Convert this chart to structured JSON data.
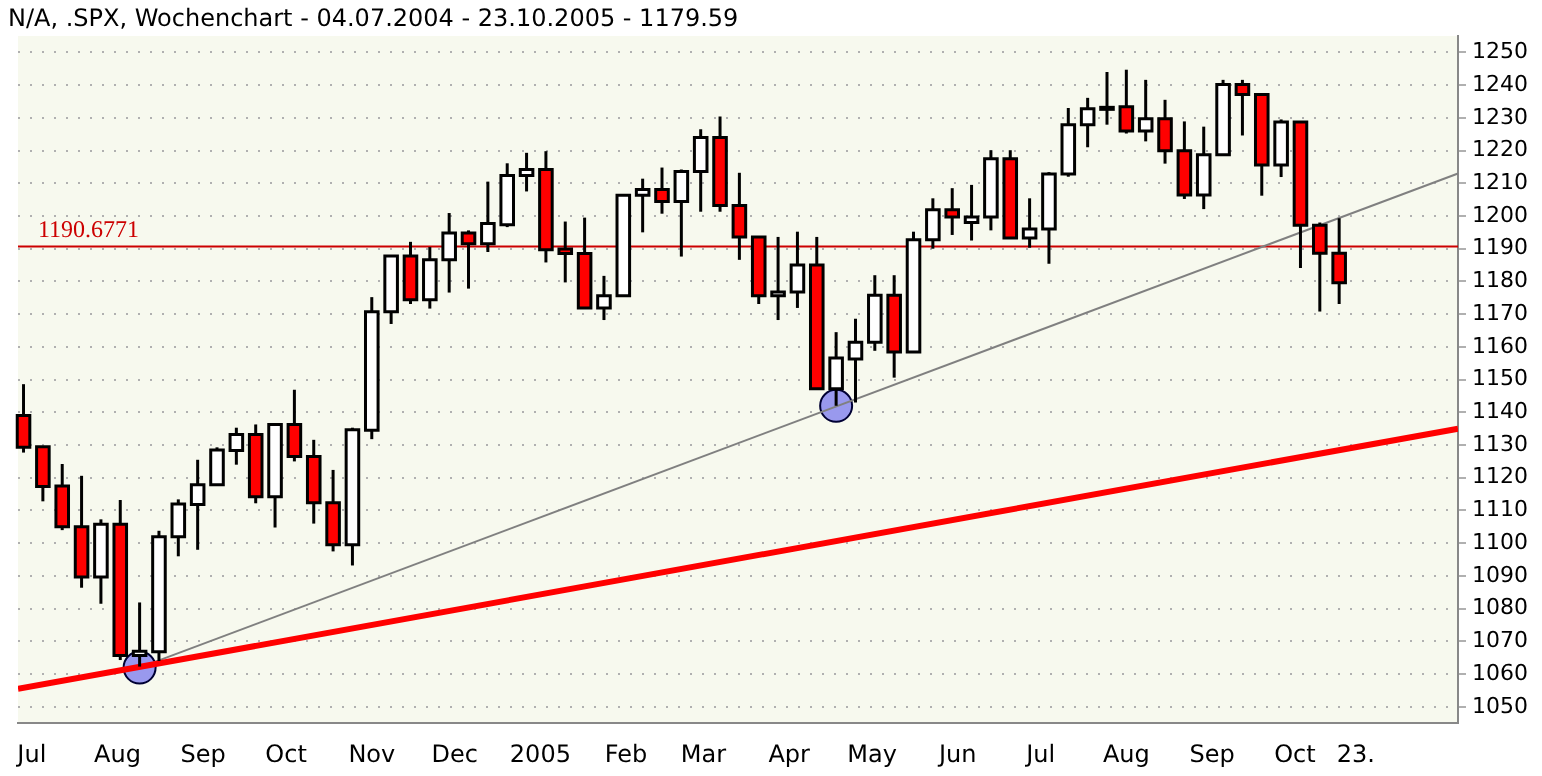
{
  "chart_data": {
    "type": "candlestick",
    "title": "N/A, .SPX, Wochenchart - 04.07.2004 - 23.10.2005 - 1179.59",
    "x": [
      "2004-06-28",
      "2004-07-05",
      "2004-07-12",
      "2004-07-19",
      "2004-07-26",
      "2004-08-02",
      "2004-08-09",
      "2004-08-16",
      "2004-08-23",
      "2004-08-30",
      "2004-09-06",
      "2004-09-13",
      "2004-09-20",
      "2004-09-27",
      "2004-10-04",
      "2004-10-11",
      "2004-10-18",
      "2004-10-25",
      "2004-11-01",
      "2004-11-08",
      "2004-11-15",
      "2004-11-22",
      "2004-11-29",
      "2004-12-06",
      "2004-12-13",
      "2004-12-20",
      "2004-12-27",
      "2005-01-03",
      "2005-01-10",
      "2005-01-17",
      "2005-01-24",
      "2005-01-31",
      "2005-02-07",
      "2005-02-14",
      "2005-02-21",
      "2005-02-28",
      "2005-03-07",
      "2005-03-14",
      "2005-03-21",
      "2005-03-28",
      "2005-04-04",
      "2005-04-11",
      "2005-04-18",
      "2005-04-25",
      "2005-05-02",
      "2005-05-09",
      "2005-05-16",
      "2005-05-23",
      "2005-05-30",
      "2005-06-06",
      "2005-06-13",
      "2005-06-20",
      "2005-06-27",
      "2005-07-04",
      "2005-07-11",
      "2005-07-18",
      "2005-07-25",
      "2005-08-01",
      "2005-08-08",
      "2005-08-15",
      "2005-08-22",
      "2005-08-29",
      "2005-09-05",
      "2005-09-12",
      "2005-09-19",
      "2005-09-26",
      "2005-10-03",
      "2005-10-10",
      "2005-10-17"
    ],
    "ohlc": [
      [
        1139,
        1148.6,
        1127.7,
        1129.3
      ],
      [
        1129.5,
        1129.5,
        1112.8,
        1117.3
      ],
      [
        1117.5,
        1124.2,
        1104,
        1105
      ],
      [
        1105,
        1120.6,
        1086.4,
        1089.7
      ],
      [
        1089.7,
        1107.3,
        1081.5,
        1105.8
      ],
      [
        1105.8,
        1113.2,
        1064.3,
        1065.7
      ],
      [
        1065.7,
        1081.9,
        1062.3,
        1067
      ],
      [
        1066.8,
        1103.8,
        1064,
        1102
      ],
      [
        1102,
        1113.4,
        1096,
        1112
      ],
      [
        1111.8,
        1125.5,
        1098,
        1117.9
      ],
      [
        1117.9,
        1129.3,
        1117.5,
        1128.5
      ],
      [
        1128.3,
        1135.3,
        1124,
        1133.2
      ],
      [
        1133.2,
        1136.3,
        1112.2,
        1114.2
      ],
      [
        1114.2,
        1136.3,
        1104.8,
        1136.3
      ],
      [
        1136.3,
        1146.9,
        1125,
        1126.5
      ],
      [
        1126.5,
        1131.6,
        1106,
        1112.4
      ],
      [
        1112.4,
        1122.4,
        1097.5,
        1099.5
      ],
      [
        1099.5,
        1135.3,
        1093.2,
        1134.7
      ],
      [
        1134.5,
        1175.2,
        1131.8,
        1170.7
      ],
      [
        1170.7,
        1188,
        1167,
        1187.8
      ],
      [
        1187.8,
        1192.1,
        1173.1,
        1174.4
      ],
      [
        1174.4,
        1190.5,
        1171.7,
        1186.6
      ],
      [
        1186.6,
        1200.9,
        1176.6,
        1194.8
      ],
      [
        1194.8,
        1195.6,
        1177.8,
        1191.5
      ],
      [
        1191.5,
        1210.5,
        1189,
        1197.7
      ],
      [
        1197.3,
        1216.1,
        1196.6,
        1212.4
      ],
      [
        1212.4,
        1219.3,
        1207.5,
        1214.2
      ],
      [
        1214.2,
        1219.8,
        1185.8,
        1189.7
      ],
      [
        1189.9,
        1198.3,
        1179.7,
        1188.5
      ],
      [
        1188.5,
        1199.5,
        1171.9,
        1171.9
      ],
      [
        1171.9,
        1181.7,
        1168.2,
        1175.6
      ],
      [
        1175.6,
        1206.3,
        1175.6,
        1206.3
      ],
      [
        1206.3,
        1211.4,
        1195,
        1208.1
      ],
      [
        1208.1,
        1214.8,
        1200.7,
        1204.4
      ],
      [
        1204.4,
        1214.2,
        1187.6,
        1213.6
      ],
      [
        1213.6,
        1226.5,
        1201.3,
        1224
      ],
      [
        1224,
        1230.4,
        1201.3,
        1203.2
      ],
      [
        1203.2,
        1213.2,
        1186.6,
        1193.6
      ],
      [
        1193.6,
        1193.6,
        1173.1,
        1175.6
      ],
      [
        1175.6,
        1193.6,
        1168.2,
        1176.8
      ],
      [
        1176.8,
        1195.2,
        1171.9,
        1185
      ],
      [
        1185,
        1193.6,
        1147.2,
        1147.2
      ],
      [
        1147.2,
        1164.5,
        1142,
        1156.6
      ],
      [
        1156.3,
        1168.6,
        1143,
        1161.4
      ],
      [
        1161.4,
        1181.9,
        1158.8,
        1175.8
      ],
      [
        1175.8,
        1181.9,
        1150.6,
        1158.4
      ],
      [
        1158.4,
        1195.2,
        1158.4,
        1192.7
      ],
      [
        1192.7,
        1205.4,
        1190,
        1201.9
      ],
      [
        1201.9,
        1208.5,
        1194.2,
        1199.7
      ],
      [
        1198,
        1209.5,
        1192.5,
        1199.7
      ],
      [
        1199.7,
        1220.1,
        1195.6,
        1217.5
      ],
      [
        1217.5,
        1220.1,
        1193.3,
        1193.3
      ],
      [
        1193.3,
        1205.4,
        1190.3,
        1196
      ],
      [
        1196,
        1213.4,
        1185.4,
        1212.8
      ],
      [
        1212.8,
        1233,
        1212,
        1227.9
      ],
      [
        1227.9,
        1236.1,
        1221,
        1232.8
      ],
      [
        1233.2,
        1244,
        1227.9,
        1232.8
      ],
      [
        1233.4,
        1244.7,
        1225.2,
        1226
      ],
      [
        1226,
        1241.6,
        1222.8,
        1229.7
      ],
      [
        1229.7,
        1235.5,
        1216,
        1219.9
      ],
      [
        1219.9,
        1228.9,
        1205.2,
        1206.4
      ],
      [
        1206.4,
        1227.3,
        1202.1,
        1218.7
      ],
      [
        1218.7,
        1241.6,
        1218.7,
        1240.2
      ],
      [
        1240.2,
        1241.6,
        1224.6,
        1237.1
      ],
      [
        1237.1,
        1237.1,
        1206.2,
        1215.6
      ],
      [
        1215.6,
        1229.5,
        1211.9,
        1228.7
      ],
      [
        1228.7,
        1228.7,
        1184.1,
        1197.2
      ],
      [
        1197.2,
        1198,
        1170.8,
        1188.6
      ],
      [
        1188.6,
        1199.3,
        1173.1,
        1179.59
      ]
    ],
    "colors": [
      "#ff0000",
      "#ff0000",
      "#ff0000",
      "#ff0000",
      "#ffffff",
      "#ff0000",
      "#ffffff",
      "#ffffff",
      "#ffffff",
      "#ffffff",
      "#ffffff",
      "#ffffff",
      "#ff0000",
      "#ffffff",
      "#ff0000",
      "#ff0000",
      "#ff0000",
      "#ffffff",
      "#ffffff",
      "#ffffff",
      "#ff0000",
      "#ffffff",
      "#ffffff",
      "#ff0000",
      "#ffffff",
      "#ffffff",
      "#ffffff",
      "#ff0000",
      "#ff0000",
      "#ff0000",
      "#ffffff",
      "#ffffff",
      "#ffffff",
      "#ff0000",
      "#ffffff",
      "#ffffff",
      "#ff0000",
      "#ff0000",
      "#ff0000",
      "#ffffff",
      "#ffffff",
      "#ff0000",
      "#ffffff",
      "#ffffff",
      "#ffffff",
      "#ff0000",
      "#ffffff",
      "#ffffff",
      "#ff0000",
      "#ffffff",
      "#ffffff",
      "#ff0000",
      "#ffffff",
      "#ffffff",
      "#ffffff",
      "#ffffff",
      "#ff0000",
      "#ff0000",
      "#ffffff",
      "#ff0000",
      "#ff0000",
      "#ffffff",
      "#ffffff",
      "#ff0000",
      "#ff0000",
      "#ffffff",
      "#ff0000",
      "#ff0000",
      "#ff0000"
    ],
    "series": [
      {
        "type": "line",
        "color": "#ff0000",
        "x": [
          "2004-06-26",
          "2005-11-29"
        ],
        "values": [
          1055.5,
          1135
        ]
      },
      {
        "type": "line",
        "color": "#808080",
        "x": [
          "2004-08-09",
          "2005-11-29"
        ],
        "values": [
          1062,
          1213
        ]
      },
      {
        "type": "scatter",
        "color": "#9999ee",
        "marker": "circle",
        "x": [
          "2004-08-09",
          "2005-04-18"
        ],
        "values": [
          1062,
          1142
        ]
      }
    ],
    "xlim": [
      "2004-06-26",
      "2005-11-29"
    ],
    "xticks": [
      {
        "value": "2004-07-01",
        "label": "Jul"
      },
      {
        "value": "2004-08-01",
        "label": "Aug"
      },
      {
        "value": "2004-09-01",
        "label": "Sep"
      },
      {
        "value": "2004-10-01",
        "label": "Oct"
      },
      {
        "value": "2004-11-01",
        "label": "Nov"
      },
      {
        "value": "2004-12-01",
        "label": "Dec"
      },
      {
        "value": "2005-01-01",
        "label": "2005"
      },
      {
        "value": "2005-02-01",
        "label": "Feb"
      },
      {
        "value": "2005-03-01",
        "label": "Mar"
      },
      {
        "value": "2005-04-01",
        "label": "Apr"
      },
      {
        "value": "2005-05-01",
        "label": "May"
      },
      {
        "value": "2005-06-01",
        "label": "Jun"
      },
      {
        "value": "2005-07-01",
        "label": "Jul"
      },
      {
        "value": "2005-08-01",
        "label": "Aug"
      },
      {
        "value": "2005-09-01",
        "label": "Sep"
      },
      {
        "value": "2005-10-01",
        "label": "Oct"
      },
      {
        "value": "2005-10-23",
        "label": "23."
      }
    ],
    "ylim": [
      1045,
      1255
    ],
    "yticks": [
      1050,
      1060,
      1070,
      1080,
      1090,
      1100,
      1110,
      1120,
      1130,
      1140,
      1150,
      1160,
      1170,
      1180,
      1190,
      1200,
      1210,
      1220,
      1230,
      1240,
      1250
    ],
    "ref_lines": [
      {
        "axis": "y",
        "value": 1190.6771,
        "label": "1190.6771",
        "color": "#cc0000"
      }
    ],
    "grid": "y"
  }
}
